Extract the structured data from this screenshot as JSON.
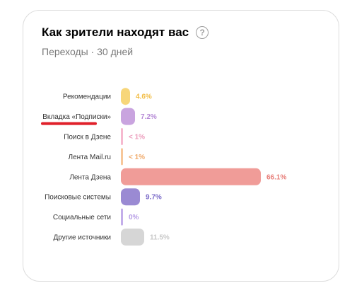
{
  "card": {
    "title": "Как зрители находят вас",
    "subtitle": "Переходы · 30 дней",
    "help_icon": "question-circle-icon"
  },
  "highlight": {
    "category": "Вкладка «Подписки»",
    "color": "#e0202a"
  },
  "chart_data": {
    "type": "bar",
    "orientation": "horizontal",
    "title": "Как зрители находят вас",
    "subtitle": "Переходы · 30 дней",
    "xlim": [
      0,
      66.1
    ],
    "categories": [
      "Рекомендации",
      "Вкладка «Подписки»",
      "Поиск в Дзене",
      "Лента Mail.ru",
      "Лента Дзена",
      "Поисковые системы",
      "Социальные сети",
      "Другие источники"
    ],
    "values": [
      4.6,
      7.2,
      0.5,
      0.5,
      66.1,
      9.7,
      0,
      11.5
    ],
    "value_labels": [
      "4.6%",
      "7.2%",
      "< 1%",
      "< 1%",
      "66.1%",
      "9.7%",
      "0%",
      "11.5%"
    ],
    "colors": [
      "#f7d67a",
      "#c9a4df",
      "#f6b9cf",
      "#f7c79a",
      "#f09c98",
      "#9a8ad3",
      "#c3aeea",
      "#d6d6d6"
    ],
    "label_colors": [
      "#f2bd45",
      "#b68ad6",
      "#ec9cbc",
      "#f0aa6a",
      "#e87f7a",
      "#7c6cc9",
      "#b69ce6",
      "#c8c8c8"
    ],
    "grid": false,
    "legend": "none"
  }
}
